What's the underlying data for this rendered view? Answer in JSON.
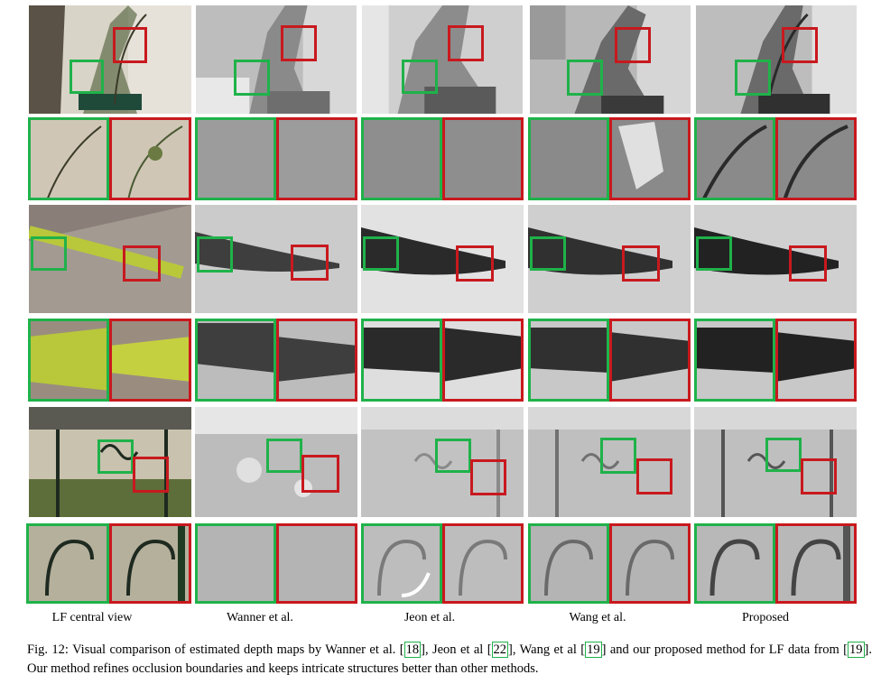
{
  "columns": [
    "LF central view",
    "Wanner et al.",
    "Jeon et al.",
    "Wang et al.",
    "Proposed"
  ],
  "caption": {
    "fig": "Fig. 12:",
    "t1": "Visual comparison of estimated depth maps by Wanner et al. [",
    "r1": "18",
    "t2": "], Jeon et al [",
    "r2": "22",
    "t3": "], Wang et al [",
    "r3": "19",
    "t4": "] and our proposed method for LF data from [",
    "r4": "19",
    "t5": "]. Our method refines occlusion boundaries and keeps intricate structures better than other methods."
  },
  "colors": {
    "green_box": "#1fb24a",
    "red_box": "#c8191e"
  }
}
